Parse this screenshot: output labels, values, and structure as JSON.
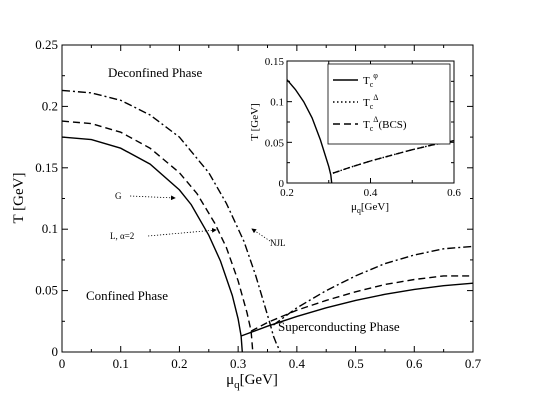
{
  "chart_data": [
    {
      "type": "line",
      "xlabel": "μ_q[GeV]",
      "ylabel": "T [GeV]",
      "xlim": [
        0,
        0.7
      ],
      "ylim": [
        0,
        0.25
      ],
      "xticks": [
        "0",
        "0.1",
        "0.2",
        "0.3",
        "0.4",
        "0.5",
        "0.6",
        "0.7"
      ],
      "yticks": [
        "0",
        "0.05",
        "0.1",
        "0.15",
        "0.2",
        "0.25"
      ],
      "grid": false,
      "annotations": {
        "deconfined": "Deconfined Phase",
        "confined": "Confined Phase",
        "superconducting": "Superconducting Phase",
        "g": "G",
        "l": "L, α=2",
        "njl": "NJL"
      },
      "series": [
        {
          "style": "solid",
          "x": [
            0,
            0.05,
            0.1,
            0.15,
            0.2,
            0.22,
            0.25,
            0.27,
            0.29,
            0.3,
            0.305,
            0.307
          ],
          "y": [
            0.175,
            0.173,
            0.166,
            0.153,
            0.132,
            0.12,
            0.095,
            0.074,
            0.046,
            0.027,
            0.013,
            0
          ],
          "x2": [
            0.305,
            0.35,
            0.4,
            0.45,
            0.5,
            0.55,
            0.6,
            0.65,
            0.7
          ],
          "y2": [
            0.013,
            0.021,
            0.029,
            0.036,
            0.042,
            0.047,
            0.051,
            0.054,
            0.056
          ]
        },
        {
          "style": "dashed",
          "x": [
            0,
            0.05,
            0.1,
            0.15,
            0.2,
            0.23,
            0.26,
            0.28,
            0.3,
            0.315,
            0.322,
            0.325
          ],
          "y": [
            0.188,
            0.186,
            0.179,
            0.166,
            0.146,
            0.129,
            0.105,
            0.085,
            0.058,
            0.032,
            0.017,
            0
          ],
          "x2": [
            0.322,
            0.35,
            0.4,
            0.45,
            0.5,
            0.55,
            0.6,
            0.65,
            0.7
          ],
          "y2": [
            0.017,
            0.024,
            0.034,
            0.042,
            0.049,
            0.055,
            0.059,
            0.062,
            0.062
          ]
        },
        {
          "style": "dashdot",
          "x": [
            0,
            0.05,
            0.1,
            0.15,
            0.2,
            0.25,
            0.28,
            0.31,
            0.33,
            0.345,
            0.355,
            0.36
          ],
          "y": [
            0.213,
            0.211,
            0.205,
            0.193,
            0.175,
            0.146,
            0.121,
            0.09,
            0.062,
            0.038,
            0.022,
            0.013
          ],
          "x2": [
            0.36,
            0.4,
            0.45,
            0.5,
            0.55,
            0.6,
            0.65,
            0.7
          ],
          "y2": [
            0.022,
            0.036,
            0.05,
            0.062,
            0.072,
            0.079,
            0.084,
            0.086
          ],
          "x3": [
            0.36,
            0.365,
            0.372
          ],
          "y3": [
            0.013,
            0.007,
            0
          ]
        }
      ]
    },
    {
      "type": "line",
      "xlabel": "μ_q[GeV]",
      "ylabel": "T [GeV]",
      "xlim": [
        0.2,
        0.6
      ],
      "ylim": [
        0,
        0.15
      ],
      "xticks": [
        "0.2",
        "0.4",
        "0.6"
      ],
      "yticks": [
        "0",
        "0.05",
        "0.1",
        "0.15"
      ],
      "legend": {
        "placement": "top-right",
        "entries": [
          {
            "base": "T",
            "sub": "c",
            "sup": "φ",
            "tail": "",
            "style": "solid"
          },
          {
            "base": "T",
            "sub": "c",
            "sup": "Δ",
            "tail": "",
            "style": "dotted"
          },
          {
            "base": "T",
            "sub": "c",
            "sup": "Δ",
            "tail": "(BCS)",
            "style": "dashed"
          }
        ]
      },
      "series": [
        {
          "style": "solid",
          "x": [
            0.2,
            0.22,
            0.24,
            0.26,
            0.28,
            0.3,
            0.305,
            0.307
          ],
          "y": [
            0.127,
            0.115,
            0.1,
            0.08,
            0.053,
            0.02,
            0.01,
            0
          ]
        },
        {
          "style": "dotted",
          "x": [
            0.31,
            0.35,
            0.4,
            0.45,
            0.5,
            0.55,
            0.6
          ],
          "y": [
            0.012,
            0.019,
            0.027,
            0.034,
            0.041,
            0.047,
            0.052
          ]
        },
        {
          "style": "dashed",
          "x": [
            0.31,
            0.35,
            0.4,
            0.45,
            0.5,
            0.55,
            0.6
          ],
          "y": [
            0.012,
            0.019,
            0.027,
            0.034,
            0.041,
            0.047,
            0.052
          ]
        }
      ]
    }
  ]
}
